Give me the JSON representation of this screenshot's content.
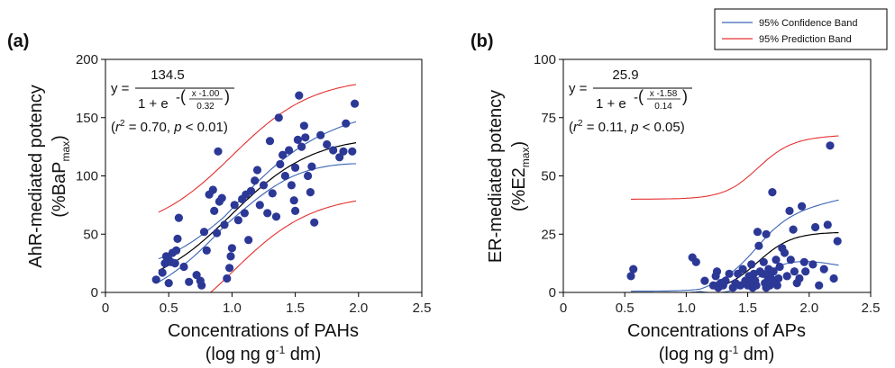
{
  "legend": {
    "items": [
      {
        "label": "95% Confidence Band",
        "color": "#3a64b4"
      },
      {
        "label": "95% Prediction Band",
        "color": "#e53030"
      }
    ]
  },
  "colors": {
    "point": "#2c3896",
    "fit": "#000000",
    "confidence": "#3a64b4",
    "prediction": "#e53030"
  },
  "chart_data": [
    {
      "type": "scatter",
      "panel_label": "(a)",
      "xlabel": "Concentrations of PAHs",
      "xunit_prefix": "(log ng g",
      "xunit_exp": "-1",
      "xunit_suffix": " dm)",
      "ylabel_line1": "AhR-mediated potency",
      "ylabel_line2_prefix": "(%BaP",
      "ylabel_line2_sub": "max",
      "ylabel_line2_suffix": ")",
      "xlim": [
        0,
        2.5
      ],
      "ylim": [
        0,
        200
      ],
      "xticks": [
        0,
        0.5,
        1.0,
        1.5,
        2.0,
        2.5
      ],
      "xtick_labels": [
        "0",
        "0.5",
        "1.0",
        "1.5",
        "2.0",
        "2.5"
      ],
      "yticks": [
        0,
        50,
        100,
        150,
        200
      ],
      "ytick_labels": [
        "0",
        "50",
        "100",
        "150",
        "200"
      ],
      "equation": {
        "y_label": "y =",
        "numerator": "134.5",
        "denominator": "1 + e",
        "exp_numerator": "x -1.00",
        "exp_denominator": "0.32"
      },
      "stats": {
        "r2_label": "r",
        "r2_value": " = 0.70, ",
        "p_label": "p",
        "p_value": " < 0.01)"
      },
      "model": {
        "a": 134.5,
        "x0": 1.0,
        "s": 0.32
      },
      "fit_range": [
        0.42,
        1.98
      ],
      "conf_range": [
        0.42,
        1.98
      ],
      "pred_range": [
        0.42,
        1.98
      ],
      "conf_halfwidth": [
        10,
        4,
        10,
        18
      ],
      "pred_halfwidth": [
        50
      ],
      "points": [
        [
          0.4,
          11
        ],
        [
          0.45,
          17
        ],
        [
          0.47,
          25
        ],
        [
          0.48,
          31
        ],
        [
          0.5,
          28
        ],
        [
          0.5,
          8
        ],
        [
          0.52,
          26
        ],
        [
          0.53,
          34
        ],
        [
          0.55,
          25
        ],
        [
          0.56,
          36
        ],
        [
          0.57,
          46
        ],
        [
          0.58,
          64
        ],
        [
          0.62,
          22
        ],
        [
          0.66,
          9
        ],
        [
          0.72,
          15
        ],
        [
          0.75,
          10
        ],
        [
          0.76,
          6
        ],
        [
          0.78,
          52
        ],
        [
          0.8,
          36
        ],
        [
          0.82,
          84
        ],
        [
          0.85,
          88
        ],
        [
          0.86,
          70
        ],
        [
          0.88,
          51
        ],
        [
          0.89,
          121
        ],
        [
          0.9,
          78
        ],
        [
          0.92,
          81
        ],
        [
          0.94,
          58
        ],
        [
          0.96,
          12
        ],
        [
          0.98,
          21
        ],
        [
          0.99,
          31
        ],
        [
          1.0,
          38
        ],
        [
          1.02,
          75
        ],
        [
          1.05,
          62
        ],
        [
          1.08,
          80
        ],
        [
          1.1,
          68
        ],
        [
          1.11,
          84
        ],
        [
          1.13,
          45
        ],
        [
          1.15,
          87
        ],
        [
          1.18,
          96
        ],
        [
          1.2,
          105
        ],
        [
          1.22,
          75
        ],
        [
          1.25,
          92
        ],
        [
          1.28,
          68
        ],
        [
          1.3,
          130
        ],
        [
          1.32,
          85
        ],
        [
          1.35,
          65
        ],
        [
          1.37,
          150
        ],
        [
          1.38,
          110
        ],
        [
          1.4,
          118
        ],
        [
          1.42,
          100
        ],
        [
          1.45,
          122
        ],
        [
          1.47,
          92
        ],
        [
          1.49,
          79
        ],
        [
          1.5,
          107
        ],
        [
          1.5,
          70
        ],
        [
          1.52,
          131
        ],
        [
          1.53,
          169
        ],
        [
          1.55,
          125
        ],
        [
          1.57,
          143
        ],
        [
          1.58,
          133
        ],
        [
          1.6,
          100
        ],
        [
          1.62,
          86
        ],
        [
          1.63,
          108
        ],
        [
          1.65,
          60
        ],
        [
          1.7,
          135
        ],
        [
          1.75,
          127
        ],
        [
          1.8,
          122
        ],
        [
          1.85,
          116
        ],
        [
          1.88,
          121
        ],
        [
          1.9,
          145
        ],
        [
          1.95,
          121
        ],
        [
          1.97,
          162
        ]
      ]
    },
    {
      "type": "scatter",
      "panel_label": "(b)",
      "xlabel": "Concentrations of APs",
      "xunit_prefix": "(log ng g",
      "xunit_exp": "-1",
      "xunit_suffix": " dm)",
      "ylabel_line1": "ER-mediated potency",
      "ylabel_line2_prefix": "(%E2",
      "ylabel_line2_sub": "max",
      "ylabel_line2_suffix": ")",
      "xlim": [
        0,
        2.5
      ],
      "ylim": [
        0,
        100
      ],
      "xticks": [
        0,
        0.5,
        1.0,
        1.5,
        2.0,
        2.5
      ],
      "xtick_labels": [
        "0",
        "0.5",
        "1.0",
        "1.5",
        "2.0",
        "2.5"
      ],
      "yticks": [
        0,
        25,
        50,
        75,
        100
      ],
      "ytick_labels": [
        "0",
        "25",
        "50",
        "75",
        "100"
      ],
      "equation": {
        "y_label": "y =",
        "numerator": "25.9",
        "denominator": "1 + e",
        "exp_numerator": "x -1.58",
        "exp_denominator": "0.14"
      },
      "stats": {
        "r2_label": "r",
        "r2_value": " = 0.11, ",
        "p_label": "p",
        "p_value": " < 0.05)"
      },
      "model": {
        "a": 25.9,
        "x0": 1.58,
        "s": 0.14
      },
      "fit_range": [
        1.2,
        2.24
      ],
      "conf_range": [
        0.55,
        2.24
      ],
      "pred_range": [
        0.55,
        2.24
      ],
      "conf_halfwidth": [
        0.5,
        0.5,
        8,
        14
      ],
      "pred_halfwidth": [
        40,
        40,
        41.5
      ],
      "points": [
        [
          0.55,
          7
        ],
        [
          0.57,
          10
        ],
        [
          1.05,
          15
        ],
        [
          1.08,
          13
        ],
        [
          1.15,
          5
        ],
        [
          1.22,
          3
        ],
        [
          1.24,
          7
        ],
        [
          1.25,
          9
        ],
        [
          1.26,
          2
        ],
        [
          1.28,
          4
        ],
        [
          1.3,
          3
        ],
        [
          1.32,
          5
        ],
        [
          1.35,
          8
        ],
        [
          1.38,
          2
        ],
        [
          1.4,
          4
        ],
        [
          1.42,
          8
        ],
        [
          1.44,
          3
        ],
        [
          1.46,
          10
        ],
        [
          1.48,
          5
        ],
        [
          1.5,
          3
        ],
        [
          1.51,
          7
        ],
        [
          1.52,
          4
        ],
        [
          1.53,
          12
        ],
        [
          1.54,
          2
        ],
        [
          1.55,
          8
        ],
        [
          1.56,
          5
        ],
        [
          1.57,
          3
        ],
        [
          1.58,
          26
        ],
        [
          1.59,
          20
        ],
        [
          1.6,
          9
        ],
        [
          1.62,
          8
        ],
        [
          1.63,
          13
        ],
        [
          1.64,
          4
        ],
        [
          1.65,
          25
        ],
        [
          1.65,
          2
        ],
        [
          1.66,
          7
        ],
        [
          1.67,
          10
        ],
        [
          1.68,
          3
        ],
        [
          1.69,
          6
        ],
        [
          1.7,
          43
        ],
        [
          1.71,
          9
        ],
        [
          1.72,
          5
        ],
        [
          1.73,
          14
        ],
        [
          1.74,
          3
        ],
        [
          1.75,
          6
        ],
        [
          1.76,
          11
        ],
        [
          1.78,
          19
        ],
        [
          1.8,
          17
        ],
        [
          1.82,
          7
        ],
        [
          1.84,
          35
        ],
        [
          1.85,
          14
        ],
        [
          1.87,
          27
        ],
        [
          1.88,
          9
        ],
        [
          1.9,
          4
        ],
        [
          1.92,
          6
        ],
        [
          1.94,
          37
        ],
        [
          1.96,
          13
        ],
        [
          1.97,
          9
        ],
        [
          2.03,
          12
        ],
        [
          2.05,
          28
        ],
        [
          2.08,
          3
        ],
        [
          2.12,
          10
        ],
        [
          2.15,
          29
        ],
        [
          2.17,
          63
        ],
        [
          2.2,
          6
        ],
        [
          2.23,
          22
        ]
      ]
    }
  ]
}
